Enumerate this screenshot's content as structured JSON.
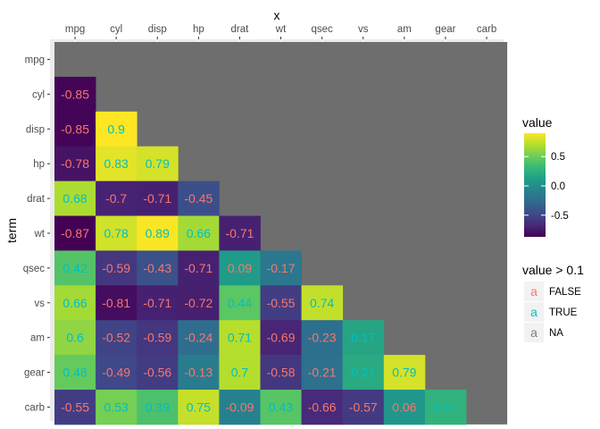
{
  "chart_data": {
    "type": "heatmap",
    "xlabel": "x",
    "ylabel": "term",
    "x_categories": [
      "mpg",
      "cyl",
      "disp",
      "hp",
      "drat",
      "wt",
      "qsec",
      "vs",
      "am",
      "gear",
      "carb"
    ],
    "y_categories": [
      "mpg",
      "cyl",
      "disp",
      "hp",
      "drat",
      "wt",
      "qsec",
      "vs",
      "am",
      "gear",
      "carb"
    ],
    "x_axis_position": "top",
    "y_order": "top-to-bottom",
    "lower_triangle_only": true,
    "cells": [
      [
        "cyl",
        "mpg",
        -0.85
      ],
      [
        "disp",
        "mpg",
        -0.85
      ],
      [
        "disp",
        "cyl",
        0.9
      ],
      [
        "hp",
        "mpg",
        -0.78
      ],
      [
        "hp",
        "cyl",
        0.83
      ],
      [
        "hp",
        "disp",
        0.79
      ],
      [
        "drat",
        "mpg",
        0.68
      ],
      [
        "drat",
        "cyl",
        -0.7
      ],
      [
        "drat",
        "disp",
        -0.71
      ],
      [
        "drat",
        "hp",
        -0.45
      ],
      [
        "wt",
        "mpg",
        -0.87
      ],
      [
        "wt",
        "cyl",
        0.78
      ],
      [
        "wt",
        "disp",
        0.89
      ],
      [
        "wt",
        "hp",
        0.66
      ],
      [
        "wt",
        "drat",
        -0.71
      ],
      [
        "qsec",
        "mpg",
        0.42
      ],
      [
        "qsec",
        "cyl",
        -0.59
      ],
      [
        "qsec",
        "disp",
        -0.43
      ],
      [
        "qsec",
        "hp",
        -0.71
      ],
      [
        "qsec",
        "drat",
        0.09
      ],
      [
        "qsec",
        "wt",
        -0.17
      ],
      [
        "vs",
        "mpg",
        0.66
      ],
      [
        "vs",
        "cyl",
        -0.81
      ],
      [
        "vs",
        "disp",
        -0.71
      ],
      [
        "vs",
        "hp",
        -0.72
      ],
      [
        "vs",
        "drat",
        0.44
      ],
      [
        "vs",
        "wt",
        -0.55
      ],
      [
        "vs",
        "qsec",
        0.74
      ],
      [
        "am",
        "mpg",
        0.6
      ],
      [
        "am",
        "cyl",
        -0.52
      ],
      [
        "am",
        "disp",
        -0.59
      ],
      [
        "am",
        "hp",
        -0.24
      ],
      [
        "am",
        "drat",
        0.71
      ],
      [
        "am",
        "wt",
        -0.69
      ],
      [
        "am",
        "qsec",
        -0.23
      ],
      [
        "am",
        "vs",
        0.17
      ],
      [
        "gear",
        "mpg",
        0.48
      ],
      [
        "gear",
        "cyl",
        -0.49
      ],
      [
        "gear",
        "disp",
        -0.56
      ],
      [
        "gear",
        "hp",
        -0.13
      ],
      [
        "gear",
        "drat",
        0.7
      ],
      [
        "gear",
        "wt",
        -0.58
      ],
      [
        "gear",
        "qsec",
        -0.21
      ],
      [
        "gear",
        "vs",
        0.21
      ],
      [
        "gear",
        "am",
        0.79
      ],
      [
        "carb",
        "mpg",
        -0.55
      ],
      [
        "carb",
        "cyl",
        0.53
      ],
      [
        "carb",
        "disp",
        0.39
      ],
      [
        "carb",
        "hp",
        0.75
      ],
      [
        "carb",
        "drat",
        -0.09
      ],
      [
        "carb",
        "wt",
        0.43
      ],
      [
        "carb",
        "qsec",
        -0.66
      ],
      [
        "carb",
        "vs",
        -0.57
      ],
      [
        "carb",
        "am",
        0.06
      ],
      [
        "carb",
        "gear",
        0.27
      ]
    ],
    "fill_scale": {
      "title": "value",
      "palette": "viridis",
      "domain": [
        -0.87,
        0.9
      ],
      "breaks": [
        0.5,
        0.0,
        -0.5
      ],
      "break_labels": [
        "0.5",
        "0.0",
        "-0.5"
      ]
    },
    "label_color_legend": {
      "title": "value > 0.1",
      "entries": [
        {
          "key": "a",
          "label": "FALSE",
          "color": "#F8766D"
        },
        {
          "key": "a",
          "label": "TRUE",
          "color": "#00BFC4"
        },
        {
          "key": "a",
          "label": "NA",
          "color": "#7F7F7F"
        }
      ]
    },
    "panel_background": "#6E6E6E",
    "grid": true,
    "legend_position": "right"
  }
}
